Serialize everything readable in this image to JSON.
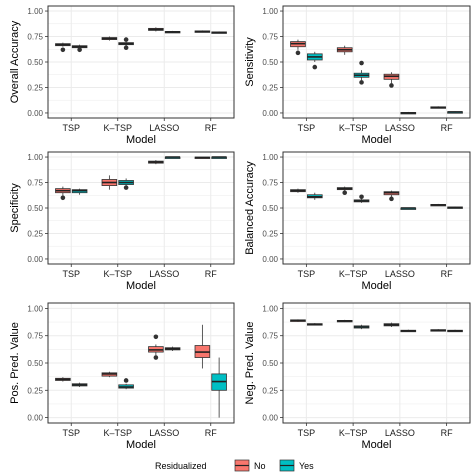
{
  "colors": {
    "no": "#f8766d",
    "yes": "#00bfc4",
    "panel_bg": "#ffffff",
    "grid": "#ebebeb",
    "border": "#333333"
  },
  "legend": {
    "title": "Residualized",
    "items": [
      {
        "label": "No",
        "color": "#f8766d"
      },
      {
        "label": "Yes",
        "color": "#00bfc4"
      }
    ]
  },
  "chart_data": [
    {
      "type": "box",
      "ylabel": "Overall Accuracy",
      "xlabel": "Model",
      "categories": [
        "TSP",
        "K–TSP",
        "LASSO",
        "RF"
      ],
      "ylim": [
        0,
        1
      ],
      "yticks": [
        "0.00",
        "0.25",
        "0.50",
        "0.75",
        "1.00"
      ],
      "series": [
        {
          "name": "No",
          "boxes": [
            {
              "q1": 0.66,
              "median": 0.67,
              "q3": 0.68,
              "min": 0.65,
              "max": 0.69,
              "outliers": [
                0.62
              ]
            },
            {
              "q1": 0.72,
              "median": 0.73,
              "q3": 0.74,
              "min": 0.71,
              "max": 0.75,
              "outliers": []
            },
            {
              "q1": 0.81,
              "median": 0.82,
              "q3": 0.83,
              "min": 0.8,
              "max": 0.84,
              "outliers": []
            },
            {
              "q1": 0.795,
              "median": 0.8,
              "q3": 0.805,
              "min": 0.79,
              "max": 0.81,
              "outliers": []
            }
          ]
        },
        {
          "name": "Yes",
          "boxes": [
            {
              "q1": 0.64,
              "median": 0.65,
              "q3": 0.66,
              "min": 0.63,
              "max": 0.67,
              "outliers": [
                0.62
              ]
            },
            {
              "q1": 0.67,
              "median": 0.68,
              "q3": 0.69,
              "min": 0.66,
              "max": 0.7,
              "outliers": [
                0.64,
                0.72
              ]
            },
            {
              "q1": 0.79,
              "median": 0.795,
              "q3": 0.8,
              "min": 0.785,
              "max": 0.805,
              "outliers": []
            },
            {
              "q1": 0.785,
              "median": 0.79,
              "q3": 0.795,
              "min": 0.78,
              "max": 0.8,
              "outliers": []
            }
          ]
        }
      ]
    },
    {
      "type": "box",
      "ylabel": "Sensitivity",
      "xlabel": "Model",
      "categories": [
        "TSP",
        "K–TSP",
        "LASSO",
        "RF"
      ],
      "ylim": [
        0,
        1
      ],
      "yticks": [
        "0.00",
        "0.25",
        "0.50",
        "0.75",
        "1.00"
      ],
      "series": [
        {
          "name": "No",
          "boxes": [
            {
              "q1": 0.65,
              "median": 0.68,
              "q3": 0.7,
              "min": 0.62,
              "max": 0.72,
              "outliers": [
                0.59
              ]
            },
            {
              "q1": 0.6,
              "median": 0.62,
              "q3": 0.64,
              "min": 0.57,
              "max": 0.66,
              "outliers": []
            },
            {
              "q1": 0.33,
              "median": 0.36,
              "q3": 0.38,
              "min": 0.29,
              "max": 0.4,
              "outliers": [
                0.27
              ]
            },
            {
              "q1": 0.05,
              "median": 0.055,
              "q3": 0.06,
              "min": 0.045,
              "max": 0.065,
              "outliers": []
            }
          ]
        },
        {
          "name": "Yes",
          "boxes": [
            {
              "q1": 0.52,
              "median": 0.55,
              "q3": 0.58,
              "min": 0.5,
              "max": 0.6,
              "outliers": [
                0.45
              ]
            },
            {
              "q1": 0.35,
              "median": 0.37,
              "q3": 0.39,
              "min": 0.32,
              "max": 0.42,
              "outliers": [
                0.49,
                0.3
              ]
            },
            {
              "q1": 0.0,
              "median": 0.0,
              "q3": 0.005,
              "min": 0.0,
              "max": 0.01,
              "outliers": []
            },
            {
              "q1": 0.005,
              "median": 0.01,
              "q3": 0.012,
              "min": 0.0,
              "max": 0.015,
              "outliers": []
            }
          ]
        }
      ]
    },
    {
      "type": "box",
      "ylabel": "Specificity",
      "xlabel": "Model",
      "categories": [
        "TSP",
        "K–TSP",
        "LASSO",
        "RF"
      ],
      "ylim": [
        0,
        1
      ],
      "yticks": [
        "0.00",
        "0.25",
        "0.50",
        "0.75",
        "1.00"
      ],
      "series": [
        {
          "name": "No",
          "boxes": [
            {
              "q1": 0.65,
              "median": 0.67,
              "q3": 0.69,
              "min": 0.62,
              "max": 0.71,
              "outliers": [
                0.6
              ]
            },
            {
              "q1": 0.72,
              "median": 0.75,
              "q3": 0.78,
              "min": 0.68,
              "max": 0.82,
              "outliers": []
            },
            {
              "q1": 0.94,
              "median": 0.95,
              "q3": 0.96,
              "min": 0.93,
              "max": 0.97,
              "outliers": []
            },
            {
              "q1": 0.99,
              "median": 0.995,
              "q3": 1.0,
              "min": 0.985,
              "max": 1.0,
              "outliers": []
            }
          ]
        },
        {
          "name": "Yes",
          "boxes": [
            {
              "q1": 0.65,
              "median": 0.67,
              "q3": 0.68,
              "min": 0.63,
              "max": 0.69,
              "outliers": []
            },
            {
              "q1": 0.73,
              "median": 0.75,
              "q3": 0.77,
              "min": 0.71,
              "max": 0.79,
              "outliers": [
                0.7
              ]
            },
            {
              "q1": 0.995,
              "median": 1.0,
              "q3": 1.0,
              "min": 0.99,
              "max": 1.0,
              "outliers": []
            },
            {
              "q1": 0.995,
              "median": 1.0,
              "q3": 1.0,
              "min": 0.99,
              "max": 1.0,
              "outliers": []
            }
          ]
        }
      ]
    },
    {
      "type": "box",
      "ylabel": "Balanced Accuracy",
      "xlabel": "Model",
      "categories": [
        "TSP",
        "K–TSP",
        "LASSO",
        "RF"
      ],
      "ylim": [
        0,
        1
      ],
      "yticks": [
        "0.00",
        "0.25",
        "0.50",
        "0.75",
        "1.00"
      ],
      "series": [
        {
          "name": "No",
          "boxes": [
            {
              "q1": 0.66,
              "median": 0.67,
              "q3": 0.68,
              "min": 0.65,
              "max": 0.69,
              "outliers": []
            },
            {
              "q1": 0.68,
              "median": 0.69,
              "q3": 0.7,
              "min": 0.67,
              "max": 0.71,
              "outliers": [
                0.65
              ]
            },
            {
              "q1": 0.63,
              "median": 0.65,
              "q3": 0.66,
              "min": 0.61,
              "max": 0.67,
              "outliers": [
                0.59
              ]
            },
            {
              "q1": 0.525,
              "median": 0.53,
              "q3": 0.535,
              "min": 0.52,
              "max": 0.54,
              "outliers": []
            }
          ]
        },
        {
          "name": "Yes",
          "boxes": [
            {
              "q1": 0.6,
              "median": 0.61,
              "q3": 0.63,
              "min": 0.58,
              "max": 0.65,
              "outliers": []
            },
            {
              "q1": 0.56,
              "median": 0.57,
              "q3": 0.58,
              "min": 0.55,
              "max": 0.59,
              "outliers": [
                0.61
              ]
            },
            {
              "q1": 0.5,
              "median": 0.5,
              "q3": 0.5,
              "min": 0.5,
              "max": 0.5,
              "outliers": []
            },
            {
              "q1": 0.5,
              "median": 0.505,
              "q3": 0.51,
              "min": 0.495,
              "max": 0.515,
              "outliers": []
            }
          ]
        }
      ]
    },
    {
      "type": "box",
      "ylabel": "Pos. Pred. Value",
      "xlabel": "Model",
      "categories": [
        "TSP",
        "K–TSP",
        "LASSO",
        "RF"
      ],
      "ylim": [
        0,
        1
      ],
      "yticks": [
        "0.00",
        "0.25",
        "0.50",
        "0.75",
        "1.00"
      ],
      "series": [
        {
          "name": "No",
          "boxes": [
            {
              "q1": 0.34,
              "median": 0.35,
              "q3": 0.36,
              "min": 0.33,
              "max": 0.37,
              "outliers": []
            },
            {
              "q1": 0.38,
              "median": 0.4,
              "q3": 0.41,
              "min": 0.37,
              "max": 0.42,
              "outliers": []
            },
            {
              "q1": 0.6,
              "median": 0.62,
              "q3": 0.65,
              "min": 0.57,
              "max": 0.67,
              "outliers": [
                0.74,
                0.55
              ]
            },
            {
              "q1": 0.55,
              "median": 0.6,
              "q3": 0.66,
              "min": 0.45,
              "max": 0.85,
              "outliers": []
            }
          ]
        },
        {
          "name": "Yes",
          "boxes": [
            {
              "q1": 0.29,
              "median": 0.3,
              "q3": 0.31,
              "min": 0.28,
              "max": 0.32,
              "outliers": []
            },
            {
              "q1": 0.27,
              "median": 0.28,
              "q3": 0.3,
              "min": 0.26,
              "max": 0.31,
              "outliers": [
                0.34
              ]
            },
            {
              "q1": 0.62,
              "median": 0.63,
              "q3": 0.64,
              "min": 0.61,
              "max": 0.65,
              "outliers": []
            },
            {
              "q1": 0.25,
              "median": 0.33,
              "q3": 0.4,
              "min": 0.0,
              "max": 0.55,
              "outliers": []
            }
          ]
        }
      ]
    },
    {
      "type": "box",
      "ylabel": "Neg. Pred. Value",
      "xlabel": "Model",
      "categories": [
        "TSP",
        "K–TSP",
        "LASSO",
        "RF"
      ],
      "ylim": [
        0,
        1
      ],
      "yticks": [
        "0.00",
        "0.25",
        "0.50",
        "0.75",
        "1.00"
      ],
      "series": [
        {
          "name": "No",
          "boxes": [
            {
              "q1": 0.88,
              "median": 0.89,
              "q3": 0.895,
              "min": 0.875,
              "max": 0.9,
              "outliers": []
            },
            {
              "q1": 0.88,
              "median": 0.885,
              "q3": 0.89,
              "min": 0.875,
              "max": 0.895,
              "outliers": []
            },
            {
              "q1": 0.84,
              "median": 0.85,
              "q3": 0.86,
              "min": 0.83,
              "max": 0.87,
              "outliers": []
            },
            {
              "q1": 0.795,
              "median": 0.8,
              "q3": 0.805,
              "min": 0.79,
              "max": 0.81,
              "outliers": []
            }
          ]
        },
        {
          "name": "Yes",
          "boxes": [
            {
              "q1": 0.85,
              "median": 0.855,
              "q3": 0.86,
              "min": 0.845,
              "max": 0.865,
              "outliers": []
            },
            {
              "q1": 0.82,
              "median": 0.83,
              "q3": 0.84,
              "min": 0.81,
              "max": 0.85,
              "outliers": []
            },
            {
              "q1": 0.79,
              "median": 0.795,
              "q3": 0.8,
              "min": 0.785,
              "max": 0.805,
              "outliers": []
            },
            {
              "q1": 0.79,
              "median": 0.795,
              "q3": 0.8,
              "min": 0.785,
              "max": 0.805,
              "outliers": []
            }
          ]
        }
      ]
    }
  ]
}
